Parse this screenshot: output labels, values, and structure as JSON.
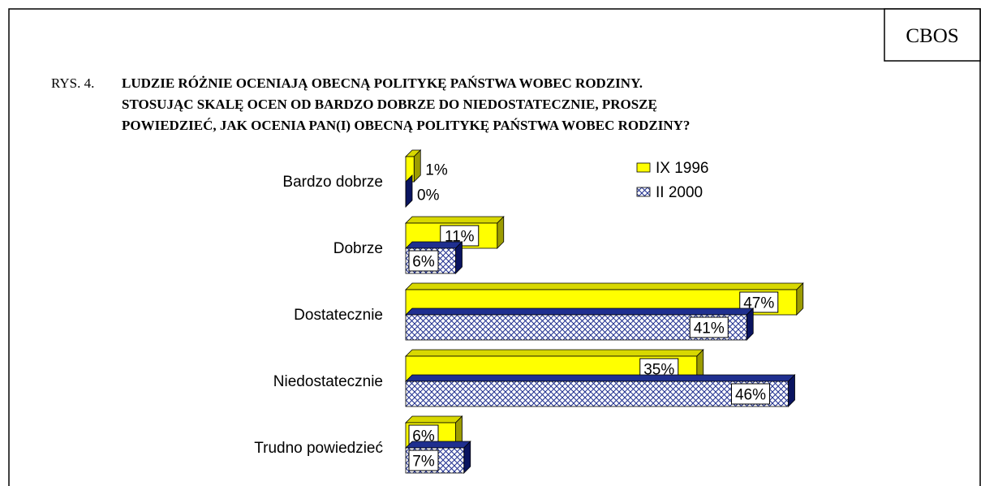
{
  "chart_data": {
    "type": "bar",
    "orientation": "horizontal",
    "source": "CBOS",
    "figure_label": "RYS. 4.",
    "title": [
      "LUDZIE RÓŻNIE OCENIAJĄ OBECNĄ POLITYKĘ PAŃSTWA WOBEC RODZINY.",
      "STOSUJĄC SKALĘ OCEN OD BARDZO DOBRZE DO NIEDOSTATECZNIE, PROSZĘ",
      "POWIEDZIEĆ, JAK OCENIA PAN(I) OBECNĄ POLITYKĘ PAŃSTWA WOBEC RODZINY?"
    ],
    "categories": [
      "Bardzo dobrze",
      "Dobrze",
      "Dostatecznie",
      "Niedostatecznie",
      "Trudno powiedzieć"
    ],
    "series": [
      {
        "name": "IX 1996",
        "color": "#ffff00",
        "values": [
          1,
          11,
          47,
          35,
          6
        ],
        "value_labels": [
          "1%",
          "11%",
          "47%",
          "35%",
          "6%"
        ]
      },
      {
        "name": "II 2000",
        "color": "#1f2f8f",
        "pattern": "crosshatch",
        "values": [
          0,
          6,
          41,
          46,
          7
        ],
        "value_labels": [
          "0%",
          "6%",
          "41%",
          "46%",
          "7%"
        ]
      }
    ],
    "legend": "top-right"
  }
}
